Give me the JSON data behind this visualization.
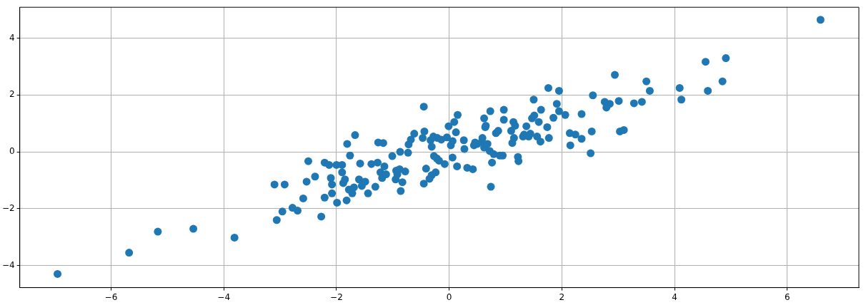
{
  "chart_data": {
    "type": "scatter",
    "color": "#1f77b4",
    "marker": "circle",
    "grid": true,
    "xlim": [
      -7.62,
      7.27
    ],
    "ylim": [
      -4.78,
      5.09
    ],
    "xticks": [
      -6,
      -4,
      -2,
      0,
      2,
      4,
      6
    ],
    "yticks": [
      -4,
      -2,
      0,
      2,
      4
    ],
    "x": [
      -6.95,
      -5.68,
      -5.17,
      -4.54,
      -3.81,
      -3.1,
      -2.92,
      -3.06,
      -2.96,
      -2.78,
      -2.69,
      -2.59,
      -2.53,
      -2.5,
      -2.38,
      -2.27,
      -2.21,
      -2.21,
      -2.13,
      -2.1,
      -2.08,
      -2.08,
      -2.0,
      -1.99,
      -1.9,
      -1.9,
      -1.88,
      -1.85,
      -1.82,
      -1.81,
      -1.78,
      -1.76,
      -1.72,
      -1.69,
      -1.67,
      -1.6,
      -1.58,
      -1.55,
      -1.49,
      -1.44,
      -1.38,
      -1.31,
      -1.27,
      -1.26,
      -1.22,
      -1.19,
      -1.17,
      -1.15,
      -1.12,
      -1.01,
      -0.95,
      -0.94,
      -0.92,
      -0.88,
      -0.87,
      -0.86,
      -0.83,
      -0.78,
      -0.73,
      -0.72,
      -0.68,
      -0.62,
      -0.47,
      -0.45,
      -0.45,
      -0.44,
      -0.41,
      -0.33,
      -0.35,
      -0.31,
      -0.31,
      -0.28,
      -0.27,
      -0.24,
      -0.22,
      -0.21,
      -0.18,
      -0.14,
      -0.08,
      -0.04,
      -0.01,
      0.03,
      0.06,
      0.06,
      0.09,
      0.12,
      0.14,
      0.15,
      0.26,
      0.27,
      0.32,
      0.42,
      0.44,
      0.46,
      0.5,
      0.58,
      0.59,
      0.62,
      0.62,
      0.64,
      0.65,
      0.68,
      0.72,
      0.73,
      0.74,
      0.76,
      0.79,
      0.83,
      0.87,
      0.9,
      0.95,
      0.97,
      0.97,
      1.1,
      1.12,
      1.14,
      1.15,
      1.17,
      1.22,
      1.23,
      1.31,
      1.33,
      1.37,
      1.41,
      1.44,
      1.47,
      1.5,
      1.51,
      1.56,
      1.59,
      1.62,
      1.63,
      1.74,
      1.77,
      1.76,
      1.85,
      1.91,
      1.95,
      1.95,
      2.06,
      2.14,
      2.15,
      2.24,
      2.35,
      2.35,
      2.53,
      2.51,
      2.55,
      2.76,
      2.79,
      2.85,
      2.94,
      3.01,
      3.03,
      3.1,
      3.28,
      3.42,
      3.5,
      3.56,
      4.09,
      4.12,
      4.55,
      4.59,
      4.85,
      4.91,
      6.59
    ],
    "values": [
      -4.3,
      -3.55,
      -2.81,
      -2.71,
      -3.02,
      -1.15,
      -1.15,
      -2.4,
      -2.1,
      -1.97,
      -2.07,
      -1.64,
      -1.05,
      -0.33,
      -0.87,
      -2.28,
      -0.38,
      -1.61,
      -0.46,
      -0.92,
      -1.15,
      -1.46,
      -0.46,
      -1.79,
      -0.46,
      -0.72,
      -1.1,
      -0.97,
      -1.71,
      0.28,
      -1.33,
      -0.13,
      -1.46,
      -1.25,
      0.59,
      -0.97,
      -0.41,
      -1.2,
      -1.05,
      -1.46,
      -0.43,
      -1.23,
      -0.38,
      0.33,
      -0.72,
      -0.92,
      0.31,
      -0.51,
      -0.79,
      -0.15,
      -0.97,
      -0.66,
      -0.79,
      -0.61,
      0.0,
      -1.38,
      -1.07,
      -0.69,
      -0.03,
      0.26,
      0.43,
      0.64,
      0.49,
      1.59,
      -1.12,
      0.72,
      -0.59,
      0.41,
      -0.95,
      0.18,
      -0.82,
      0.54,
      -0.15,
      -0.72,
      -0.23,
      0.49,
      -0.31,
      0.43,
      -0.43,
      0.51,
      0.9,
      0.23,
      -0.2,
      0.38,
      1.05,
      0.69,
      -0.51,
      1.3,
      0.41,
      0.1,
      -0.56,
      -0.61,
      0.23,
      0.33,
      0.28,
      0.36,
      0.49,
      1.18,
      0.15,
      0.87,
      0.92,
      0.28,
      0.03,
      1.43,
      -1.23,
      -0.38,
      -0.08,
      0.66,
      0.74,
      -0.13,
      -0.13,
      1.48,
      1.13,
      0.74,
      0.31,
      1.05,
      0.49,
      0.92,
      -0.18,
      -0.33,
      0.54,
      0.61,
      0.9,
      0.54,
      0.64,
      1.18,
      1.84,
      1.28,
      0.54,
      1.05,
      0.36,
      1.48,
      0.87,
      0.49,
      2.25,
      1.2,
      1.69,
      2.15,
      1.43,
      1.3,
      0.66,
      0.23,
      0.61,
      0.46,
      1.33,
      0.72,
      -0.05,
      1.99,
      1.76,
      1.56,
      1.69,
      2.71,
      1.79,
      0.72,
      0.77,
      1.71,
      1.76,
      2.48,
      2.15,
      2.25,
      1.84,
      3.17,
      2.15,
      2.48,
      3.3,
      4.65
    ]
  }
}
